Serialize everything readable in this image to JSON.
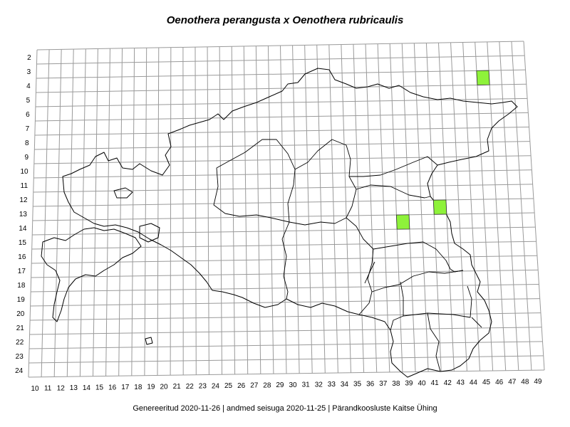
{
  "title": "Oenothera perangusta x Oenothera rubricaulis",
  "footer": "Genereeritud 2020-11-26  |  andmed seisuga 2020-11-25  |  Pärandkoosluste Kaitse Ühing",
  "grid": {
    "rows": [
      "2",
      "3",
      "4",
      "5",
      "6",
      "7",
      "8",
      "9",
      "10",
      "11",
      "12",
      "13",
      "14",
      "15",
      "16",
      "17",
      "18",
      "19",
      "20",
      "21",
      "22",
      "23",
      "24"
    ],
    "cols": [
      "10",
      "11",
      "12",
      "13",
      "14",
      "15",
      "16",
      "17",
      "18",
      "19",
      "20",
      "21",
      "22",
      "23",
      "24",
      "25",
      "26",
      "27",
      "28",
      "29",
      "30",
      "31",
      "32",
      "33",
      "34",
      "35",
      "36",
      "37",
      "38",
      "39",
      "40",
      "41",
      "42",
      "43",
      "44",
      "45",
      "46",
      "47",
      "48",
      "49"
    ]
  },
  "occupied_cells": [
    {
      "col": 46,
      "row": 4
    },
    {
      "col": 42,
      "row": 13
    },
    {
      "col": 39,
      "row": 14
    }
  ],
  "colors": {
    "occupied": "#8ef23a",
    "grid": "#9a9a9a",
    "border": "#000000"
  }
}
